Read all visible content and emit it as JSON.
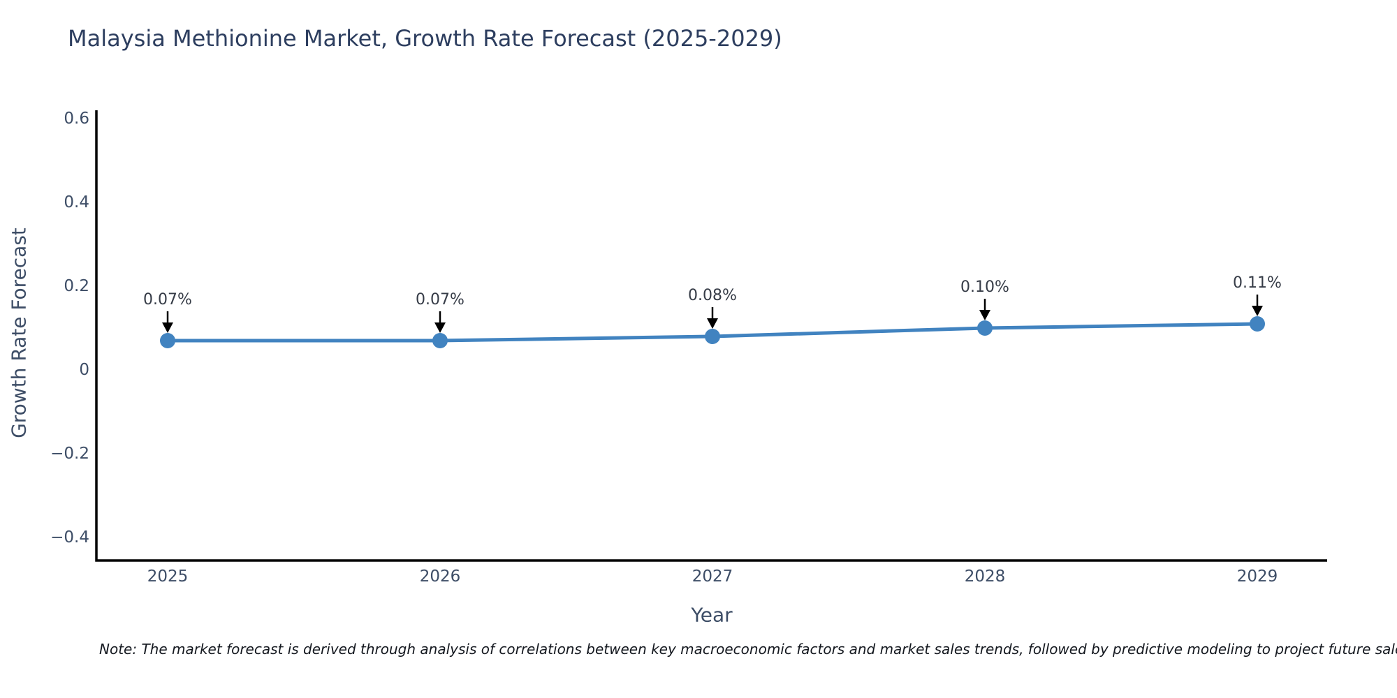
{
  "page": {
    "background": "#ffffff"
  },
  "chart_data": {
    "type": "line",
    "title": "Malaysia Methionine Market, Growth Rate Forecast (2025-2029)",
    "xlabel": "Year",
    "ylabel": "Growth Rate Forecast",
    "x": [
      "2025",
      "2026",
      "2027",
      "2028",
      "2029"
    ],
    "values": [
      0.07,
      0.07,
      0.08,
      0.1,
      0.11
    ],
    "point_labels": [
      "0.07%",
      "0.07%",
      "0.08%",
      "0.10%",
      "0.11%"
    ],
    "yticks": {
      "values": [
        0.6,
        0.4,
        0.2,
        0,
        -0.2,
        -0.4
      ],
      "labels": [
        "0.6",
        "0.4",
        "0.2",
        "0",
        "−0.2",
        "−0.4"
      ]
    },
    "ylim": [
      -0.45,
      0.67
    ],
    "grid": false,
    "legend": null,
    "line_color": "#4183c0",
    "marker_color": "#4183c0",
    "annotation_arrow_color": "#000000",
    "axis_color": "#000000",
    "text_color": "#3d4d66",
    "title_color": "#2d3e5f"
  },
  "note": {
    "text": "Note: The market forecast is derived through analysis of correlations between key macroeconomic factors and market sales trends, followed by predictive modeling to project future sales."
  }
}
